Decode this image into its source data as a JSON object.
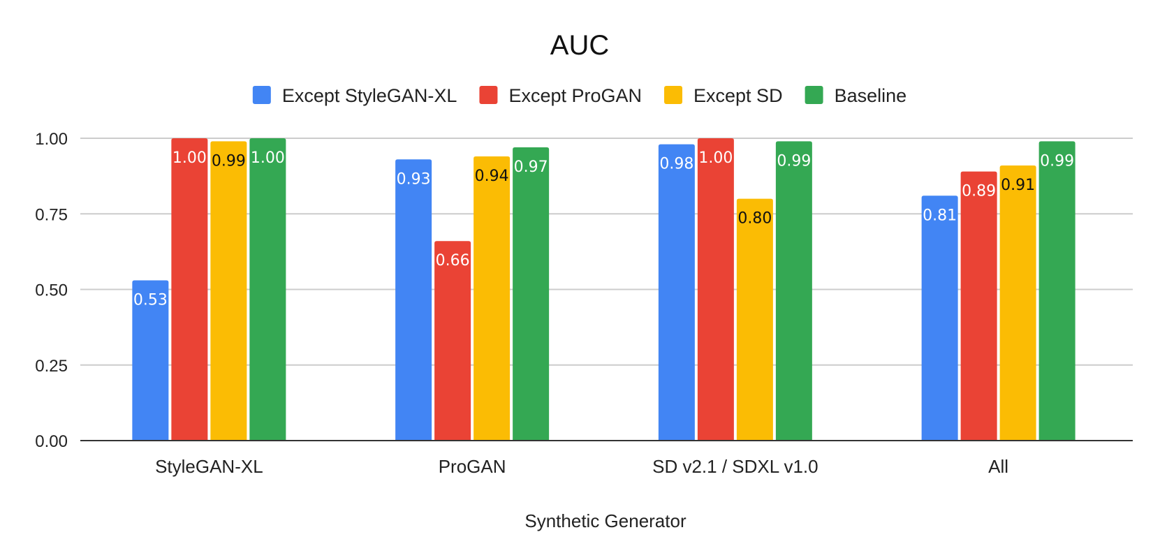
{
  "chart_data": {
    "type": "bar",
    "title": "AUC",
    "xlabel": "Synthetic Generator",
    "ylabel": "",
    "categories": [
      "StyleGAN-XL",
      "ProGAN",
      "SD v2.1 / SDXL v1.0",
      "All"
    ],
    "ylim": [
      0,
      1
    ],
    "yticks": [
      "0.00",
      "0.25",
      "0.50",
      "0.75",
      "1.00"
    ],
    "grid": true,
    "legend_position": "top",
    "series": [
      {
        "name": "Except StyleGAN-XL",
        "color": "#4285F4",
        "label_color": "#ffffff",
        "values": [
          0.53,
          0.93,
          0.98,
          0.81
        ],
        "labels": [
          "0.53",
          "0.93",
          "0.98",
          "0.81"
        ]
      },
      {
        "name": "Except ProGAN",
        "color": "#EA4335",
        "label_color": "#ffffff",
        "values": [
          1.0,
          0.66,
          1.0,
          0.89
        ],
        "labels": [
          "1.00",
          "0.66",
          "1.00",
          "0.89"
        ]
      },
      {
        "name": "Except SD",
        "color": "#FBBC04",
        "label_color": "#111111",
        "values": [
          0.99,
          0.94,
          0.8,
          0.91
        ],
        "labels": [
          "0.99",
          "0.94",
          "0.80",
          "0.91"
        ]
      },
      {
        "name": "Baseline",
        "color": "#34A853",
        "label_color": "#ffffff",
        "values": [
          1.0,
          0.97,
          0.99,
          0.99
        ],
        "labels": [
          "1.00",
          "0.97",
          "0.99",
          "0.99"
        ]
      }
    ]
  }
}
